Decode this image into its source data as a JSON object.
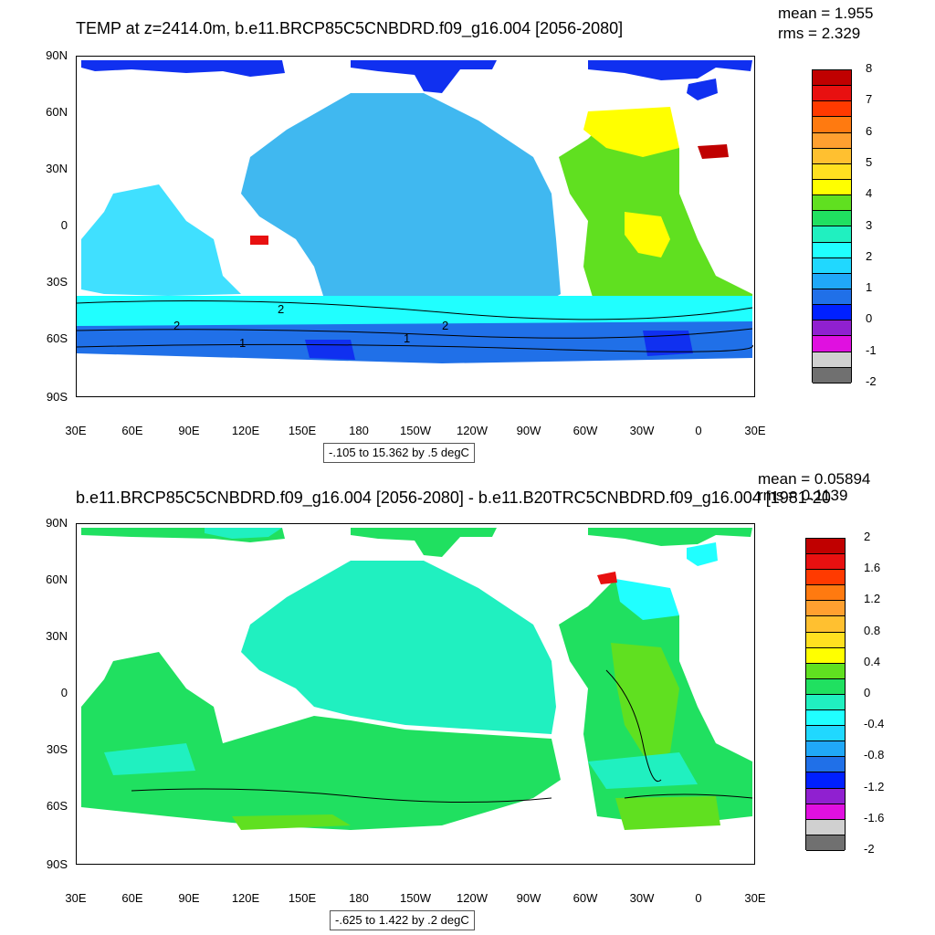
{
  "top_panel": {
    "title": "TEMP at z=2414.0m, b.e11.BRCP85C5CNBDRD.f09_g16.004 [2056-2080]",
    "mean": "mean = 1.955",
    "rms": "rms = 2.329",
    "range_label": "-.105 to 15.362 by .5 degC",
    "y_ticks": [
      "90N",
      "60N",
      "30N",
      "0",
      "30S",
      "60S",
      "90S"
    ],
    "x_ticks": [
      "30E",
      "60E",
      "90E",
      "120E",
      "150E",
      "180",
      "150W",
      "120W",
      "90W",
      "60W",
      "30W",
      "0",
      "30E"
    ],
    "contour_labels": [
      "2",
      "2",
      "1",
      "2",
      "1"
    ],
    "colorbar": {
      "labels": [
        "8",
        "7",
        "6",
        "5",
        "4",
        "3",
        "2",
        "1",
        "0",
        "-1",
        "-2"
      ],
      "colors": [
        "#c00000",
        "#e81010",
        "#ff3a00",
        "#ff7a10",
        "#ffa030",
        "#ffc030",
        "#ffe020",
        "#ffff00",
        "#60e020",
        "#20e060",
        "#20f0c0",
        "#20ffff",
        "#20d8ff",
        "#20a8f8",
        "#2070e8",
        "#0020ff",
        "#9020d0",
        "#e010e0",
        "#d0d0d0",
        "#707070"
      ]
    }
  },
  "bottom_panel": {
    "title": "b.e11.BRCP85C5CNBDRD.f09_g16.004 [2056-2080] - b.e11.B20TRC5CNBDRD.f09_g16.004 [1981-20",
    "mean": "mean = 0.05894",
    "rms": "rms = 0.1139",
    "range_label": "-.625 to 1.422 by .2 degC",
    "y_ticks": [
      "90N",
      "60N",
      "30N",
      "0",
      "30S",
      "60S",
      "90S"
    ],
    "x_ticks": [
      "30E",
      "60E",
      "90E",
      "120E",
      "150E",
      "180",
      "150W",
      "120W",
      "90W",
      "60W",
      "30W",
      "0",
      "30E"
    ],
    "colorbar": {
      "labels": [
        "2",
        "1.6",
        "1.2",
        "0.8",
        "0.4",
        "0",
        "-0.4",
        "-0.8",
        "-1.2",
        "-1.6",
        "-2"
      ],
      "colors": [
        "#c00000",
        "#e81010",
        "#ff3a00",
        "#ff7a10",
        "#ffa030",
        "#ffc030",
        "#ffe020",
        "#ffff00",
        "#60e020",
        "#20e060",
        "#20f0c0",
        "#20ffff",
        "#20d8ff",
        "#20a8f8",
        "#2070e8",
        "#0020ff",
        "#9020d0",
        "#e010e0",
        "#d0d0d0",
        "#707070"
      ]
    }
  }
}
